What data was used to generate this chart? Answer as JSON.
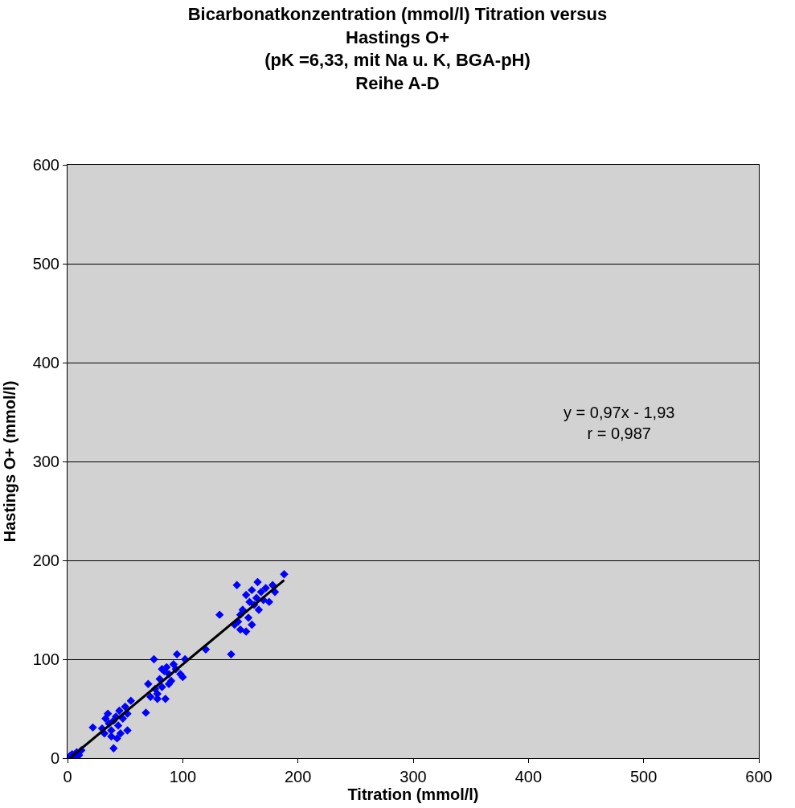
{
  "chart_data": {
    "type": "scatter",
    "title": "Bicarbonatkonzentration (mmol/l) Titration versus\nHastings O+\n(pK =6,33, mit Na u. K, BGA-pH)\nReihe A-D",
    "xlabel": "Titration (mmol/l)",
    "ylabel": "Hastings O+ (mmol/l)",
    "xlim": [
      0,
      600
    ],
    "ylim": [
      0,
      600
    ],
    "xticks": [
      0,
      100,
      200,
      300,
      400,
      500,
      600
    ],
    "yticks": [
      0,
      100,
      200,
      300,
      400,
      500,
      600
    ],
    "grid": "y",
    "legend": false,
    "marker": "diamond",
    "annotations": [
      "y = 0,97x - 1,93\nr = 0,987"
    ],
    "series": [
      {
        "color": "#0000ff",
        "x": [
          2,
          4,
          6,
          8,
          10,
          12,
          22,
          40,
          30,
          33,
          35,
          36,
          38,
          40,
          42,
          44,
          45,
          46,
          48,
          50,
          52,
          52,
          55,
          38,
          43,
          32,
          68,
          70,
          72,
          75,
          78,
          80,
          82,
          84,
          85,
          86,
          88,
          90,
          92,
          94,
          95,
          98,
          100,
          102,
          78,
          82,
          88,
          76,
          120,
          132,
          142,
          147,
          148,
          150,
          152,
          155,
          155,
          157,
          158,
          160,
          160,
          162,
          164,
          165,
          166,
          168,
          170,
          172,
          175,
          178,
          180,
          188,
          150,
          145
        ],
        "values": [
          2,
          4,
          1,
          6,
          3,
          8,
          31,
          10,
          30,
          40,
          45,
          35,
          28,
          38,
          42,
          33,
          48,
          25,
          40,
          52,
          45,
          28,
          58,
          22,
          20,
          25,
          46,
          75,
          62,
          100,
          65,
          80,
          72,
          88,
          60,
          92,
          85,
          78,
          95,
          90,
          105,
          85,
          82,
          100,
          60,
          90,
          75,
          70,
          110,
          145,
          105,
          175,
          138,
          130,
          150,
          128,
          165,
          142,
          158,
          170,
          135,
          155,
          162,
          178,
          150,
          168,
          160,
          172,
          158,
          175,
          168,
          186,
          145,
          135
        ]
      },
      {
        "type": "line",
        "color": "#000000",
        "line_style": "solid",
        "marker": "none",
        "x": [
          2,
          188
        ],
        "values": [
          0,
          180
        ]
      }
    ]
  }
}
